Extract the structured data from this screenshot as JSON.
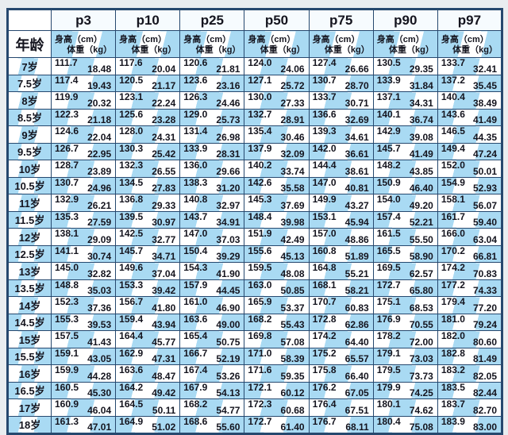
{
  "colors": {
    "stripe_blue": "#a9daf3",
    "border_navy": "#26486e",
    "text_dark": "#14141e",
    "page_bg": "#e9edf0"
  },
  "chart_data": {
    "type": "table",
    "row_header": "年龄",
    "columns": [
      "p3",
      "p10",
      "p25",
      "p50",
      "p75",
      "p90",
      "p97"
    ],
    "cell_fields": [
      "身高（cm）",
      "体重（kg）"
    ],
    "rows": [
      {
        "age": "7岁",
        "cells": [
          [
            "111.7",
            "18.48"
          ],
          [
            "117.6",
            "20.04"
          ],
          [
            "120.6",
            "21.81"
          ],
          [
            "124.0",
            "24.06"
          ],
          [
            "127.4",
            "26.66"
          ],
          [
            "130.5",
            "29.35"
          ],
          [
            "133.7",
            "32.41"
          ]
        ]
      },
      {
        "age": "7.5岁",
        "cells": [
          [
            "117.4",
            "19.43"
          ],
          [
            "120.5",
            "21.17"
          ],
          [
            "123.6",
            "23.16"
          ],
          [
            "127.1",
            "25.72"
          ],
          [
            "130.7",
            "28.70"
          ],
          [
            "133.9",
            "31.84"
          ],
          [
            "137.2",
            "35.45"
          ]
        ]
      },
      {
        "age": "8岁",
        "cells": [
          [
            "119.9",
            "20.32"
          ],
          [
            "123.1",
            "22.24"
          ],
          [
            "126.3",
            "24.46"
          ],
          [
            "130.0",
            "27.33"
          ],
          [
            "133.7",
            "30.71"
          ],
          [
            "137.1",
            "34.31"
          ],
          [
            "140.4",
            "38.49"
          ]
        ]
      },
      {
        "age": "8.5岁",
        "cells": [
          [
            "122.3",
            "21.18"
          ],
          [
            "125.6",
            "23.28"
          ],
          [
            "129.0",
            "25.73"
          ],
          [
            "132.7",
            "28.91"
          ],
          [
            "136.6",
            "32.69"
          ],
          [
            "140.1",
            "36.74"
          ],
          [
            "143.6",
            "41.49"
          ]
        ]
      },
      {
        "age": "9岁",
        "cells": [
          [
            "124.6",
            "22.04"
          ],
          [
            "128.0",
            "24.31"
          ],
          [
            "131.4",
            "26.98"
          ],
          [
            "135.4",
            "30.46"
          ],
          [
            "139.3",
            "34.61"
          ],
          [
            "142.9",
            "39.08"
          ],
          [
            "146.5",
            "44.35"
          ]
        ]
      },
      {
        "age": "9.5岁",
        "cells": [
          [
            "126.7",
            "22.95"
          ],
          [
            "130.3",
            "25.42"
          ],
          [
            "133.9",
            "28.31"
          ],
          [
            "137.9",
            "32.09"
          ],
          [
            "142.0",
            "36.61"
          ],
          [
            "145.7",
            "41.49"
          ],
          [
            "149.4",
            "47.24"
          ]
        ]
      },
      {
        "age": "10岁",
        "cells": [
          [
            "128.7",
            "23.89"
          ],
          [
            "132.3",
            "26.55"
          ],
          [
            "136.0",
            "29.66"
          ],
          [
            "140.2",
            "33.74"
          ],
          [
            "144.4",
            "38.61"
          ],
          [
            "148.2",
            "43.85"
          ],
          [
            "152.0",
            "50.01"
          ]
        ]
      },
      {
        "age": "10.5岁",
        "cells": [
          [
            "130.7",
            "24.96"
          ],
          [
            "134.5",
            "27.83"
          ],
          [
            "138.3",
            "31.20"
          ],
          [
            "142.6",
            "35.58"
          ],
          [
            "147.0",
            "40.81"
          ],
          [
            "150.9",
            "46.40"
          ],
          [
            "154.9",
            "52.93"
          ]
        ]
      },
      {
        "age": "11岁",
        "cells": [
          [
            "132.9",
            "26.21"
          ],
          [
            "136.8",
            "29.33"
          ],
          [
            "140.8",
            "32.97"
          ],
          [
            "145.3",
            "37.69"
          ],
          [
            "149.9",
            "43.27"
          ],
          [
            "154.0",
            "49.20"
          ],
          [
            "158.1",
            "56.07"
          ]
        ]
      },
      {
        "age": "11.5岁",
        "cells": [
          [
            "135.3",
            "27.59"
          ],
          [
            "139.5",
            "30.97"
          ],
          [
            "143.7",
            "34.91"
          ],
          [
            "148.4",
            "39.98"
          ],
          [
            "153.1",
            "45.94"
          ],
          [
            "157.4",
            "52.21"
          ],
          [
            "161.7",
            "59.40"
          ]
        ]
      },
      {
        "age": "12岁",
        "cells": [
          [
            "138.1",
            "29.09"
          ],
          [
            "142.5",
            "32.77"
          ],
          [
            "147.0",
            "37.03"
          ],
          [
            "151.9",
            "42.49"
          ],
          [
            "157.0",
            "48.86"
          ],
          [
            "161.5",
            "55.50"
          ],
          [
            "166.0",
            "63.04"
          ]
        ]
      },
      {
        "age": "12.5岁",
        "cells": [
          [
            "141.1",
            "30.74"
          ],
          [
            "145.7",
            "34.71"
          ],
          [
            "150.4",
            "39.29"
          ],
          [
            "155.6",
            "45.13"
          ],
          [
            "160.8",
            "51.89"
          ],
          [
            "165.5",
            "58.90"
          ],
          [
            "170.2",
            "66.81"
          ]
        ]
      },
      {
        "age": "13岁",
        "cells": [
          [
            "145.0",
            "32.82"
          ],
          [
            "149.6",
            "37.04"
          ],
          [
            "154.3",
            "41.90"
          ],
          [
            "159.5",
            "48.08"
          ],
          [
            "164.8",
            "55.21"
          ],
          [
            "169.5",
            "62.57"
          ],
          [
            "174.2",
            "70.83"
          ]
        ]
      },
      {
        "age": "13.5岁",
        "cells": [
          [
            "148.8",
            "35.03"
          ],
          [
            "153.3",
            "39.42"
          ],
          [
            "157.9",
            "44.45"
          ],
          [
            "163.0",
            "50.85"
          ],
          [
            "168.1",
            "58.21"
          ],
          [
            "172.7",
            "65.80"
          ],
          [
            "177.2",
            "74.33"
          ]
        ]
      },
      {
        "age": "14岁",
        "cells": [
          [
            "152.3",
            "37.36"
          ],
          [
            "156.7",
            "41.80"
          ],
          [
            "161.0",
            "46.90"
          ],
          [
            "165.9",
            "53.37"
          ],
          [
            "170.7",
            "60.83"
          ],
          [
            "175.1",
            "68.53"
          ],
          [
            "179.4",
            "77.20"
          ]
        ]
      },
      {
        "age": "14.5岁",
        "cells": [
          [
            "155.3",
            "39.53"
          ],
          [
            "159.4",
            "43.94"
          ],
          [
            "163.6",
            "49.00"
          ],
          [
            "168.2",
            "55.43"
          ],
          [
            "172.8",
            "62.86"
          ],
          [
            "176.9",
            "70.55"
          ],
          [
            "181.0",
            "79.24"
          ]
        ]
      },
      {
        "age": "15岁",
        "cells": [
          [
            "157.5",
            "41.43"
          ],
          [
            "164.4",
            "45.77"
          ],
          [
            "165.4",
            "50.75"
          ],
          [
            "169.8",
            "57.08"
          ],
          [
            "174.2",
            "64.40"
          ],
          [
            "178.2",
            "72.00"
          ],
          [
            "182.0",
            "80.60"
          ]
        ]
      },
      {
        "age": "15.5岁",
        "cells": [
          [
            "159.1",
            "43.05"
          ],
          [
            "162.9",
            "47.31"
          ],
          [
            "166.7",
            "52.19"
          ],
          [
            "171.0",
            "58.39"
          ],
          [
            "175.2",
            "65.57"
          ],
          [
            "179.1",
            "73.03"
          ],
          [
            "182.8",
            "81.49"
          ]
        ]
      },
      {
        "age": "16岁",
        "cells": [
          [
            "159.9",
            "44.28"
          ],
          [
            "163.6",
            "48.47"
          ],
          [
            "167.4",
            "53.26"
          ],
          [
            "171.6",
            "59.35"
          ],
          [
            "175.8",
            "66.40"
          ],
          [
            "179.5",
            "73.73"
          ],
          [
            "183.2",
            "82.05"
          ]
        ]
      },
      {
        "age": "16.5岁",
        "cells": [
          [
            "160.5",
            "45.30"
          ],
          [
            "164.2",
            "49.42"
          ],
          [
            "167.9",
            "54.13"
          ],
          [
            "172.1",
            "60.12"
          ],
          [
            "176.2",
            "67.05"
          ],
          [
            "179.9",
            "74.25"
          ],
          [
            "183.5",
            "82.44"
          ]
        ]
      },
      {
        "age": "17岁",
        "cells": [
          [
            "160.9",
            "46.04"
          ],
          [
            "164.5",
            "50.11"
          ],
          [
            "168.2",
            "54.77"
          ],
          [
            "172.3",
            "60.68"
          ],
          [
            "176.4",
            "67.51"
          ],
          [
            "180.1",
            "74.62"
          ],
          [
            "183.7",
            "82.70"
          ]
        ]
      },
      {
        "age": "18岁",
        "cells": [
          [
            "161.3",
            "47.01"
          ],
          [
            "164.9",
            "51.02"
          ],
          [
            "168.6",
            "55.60"
          ],
          [
            "172.7",
            "61.40"
          ],
          [
            "176.7",
            "68.11"
          ],
          [
            "180.4",
            "75.08"
          ],
          [
            "183.9",
            "83.00"
          ]
        ]
      }
    ]
  }
}
